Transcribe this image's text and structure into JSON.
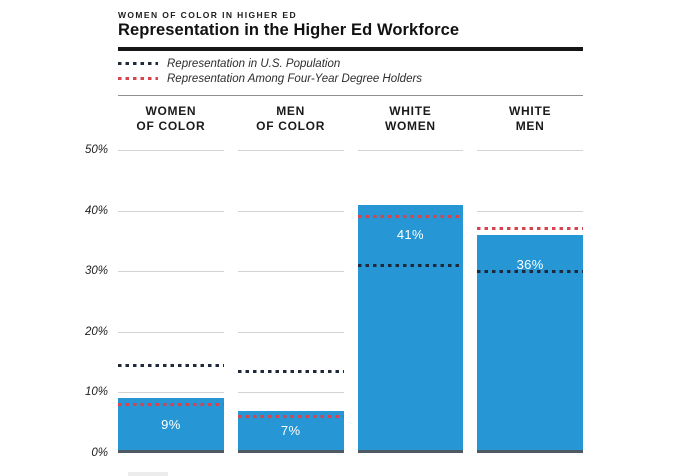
{
  "header": {
    "kicker": "WOMEN OF COLOR IN HIGHER ED",
    "title": "Representation in the Higher Ed Workforce"
  },
  "legend": [
    {
      "label": "Representation in U.S. Population",
      "color": "#1e2a3a"
    },
    {
      "label": "Representation Among Four-Year Degree Holders",
      "color": "#d6454f"
    }
  ],
  "colors": {
    "bar": "#2697d4",
    "bar_baseline": "#4d5a63",
    "us_population_line": "#1e2a3a",
    "degree_holders_line": "#d6454f",
    "gridline": "#d3d3d3",
    "title_rule": "#161616",
    "divider_rule": "#8f8f8f",
    "bar_label_text": "#ffffff"
  },
  "chart_data": {
    "type": "bar",
    "title": "Representation in the Higher Ed Workforce",
    "subtitle": "WOMEN OF COLOR IN HIGHER ED",
    "categories": [
      {
        "line1": "WOMEN",
        "line2": "OF COLOR"
      },
      {
        "line1": "MEN",
        "line2": "OF COLOR"
      },
      {
        "line1": "WHITE",
        "line2": "WOMEN"
      },
      {
        "line1": "WHITE",
        "line2": "MEN"
      }
    ],
    "series": [
      {
        "name": "Representation in the Higher Ed Workforce",
        "values": [
          9,
          7,
          41,
          36
        ],
        "labels": [
          "9%",
          "7%",
          "41%",
          "36%"
        ],
        "color": "#2697d4"
      }
    ],
    "overlays": [
      {
        "name": "Representation in U.S. Population",
        "style": "dotted",
        "color": "#1e2a3a",
        "values": [
          14.5,
          13.5,
          31,
          30
        ]
      },
      {
        "name": "Representation Among Four-Year Degree Holders",
        "style": "dotted",
        "color": "#d6454f",
        "values": [
          8,
          6,
          39,
          37
        ]
      }
    ],
    "xlabel": "",
    "ylabel": "",
    "ylim": [
      0,
      50
    ],
    "yticks": [
      "50%",
      "40%",
      "30%",
      "20%",
      "10%",
      "0%"
    ],
    "grid": "horizontal, segmented per column",
    "legend_position": "top"
  }
}
